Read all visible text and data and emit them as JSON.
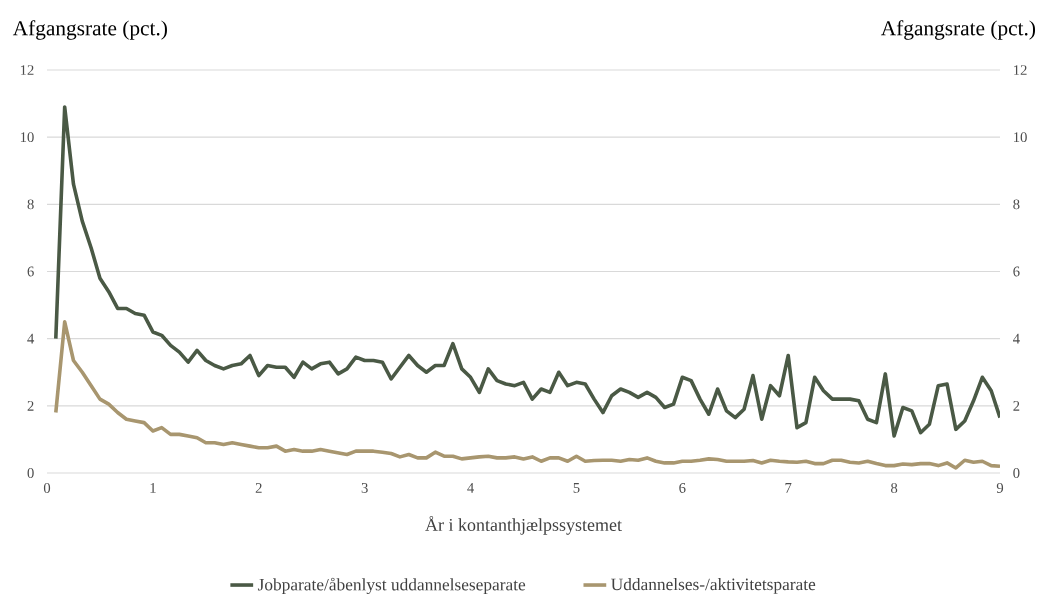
{
  "chart_data": {
    "type": "line",
    "ylabel": "Afgangsrate (pct.)",
    "y2label": "Afgangsrate (pct.)",
    "xlabel": "År i kontanthjælpssystemet",
    "x": [
      0.083,
      0.167,
      0.25,
      0.333,
      0.417,
      0.5,
      0.583,
      0.667,
      0.75,
      0.833,
      0.917,
      1.0,
      1.083,
      1.167,
      1.25,
      1.333,
      1.417,
      1.5,
      1.583,
      1.667,
      1.75,
      1.833,
      1.917,
      2.0,
      2.083,
      2.167,
      2.25,
      2.333,
      2.417,
      2.5,
      2.583,
      2.667,
      2.75,
      2.833,
      2.917,
      3.0,
      3.083,
      3.167,
      3.25,
      3.333,
      3.417,
      3.5,
      3.583,
      3.667,
      3.75,
      3.833,
      3.917,
      4.0,
      4.083,
      4.167,
      4.25,
      4.333,
      4.417,
      4.5,
      4.583,
      4.667,
      4.75,
      4.833,
      4.917,
      5.0,
      5.083,
      5.167,
      5.25,
      5.333,
      5.417,
      5.5,
      5.583,
      5.667,
      5.75,
      5.833,
      5.917,
      6.0,
      6.083,
      6.167,
      6.25,
      6.333,
      6.417,
      6.5,
      6.583,
      6.667,
      6.75,
      6.833,
      6.917,
      7.0,
      7.083,
      7.167,
      7.25,
      7.333,
      7.417,
      7.5,
      7.583,
      7.667,
      7.75,
      7.833,
      7.917,
      8.0,
      8.083,
      8.167,
      8.25,
      8.333,
      8.417,
      8.5,
      8.583,
      8.667,
      8.75,
      8.833,
      8.917,
      9.0
    ],
    "series": [
      {
        "name": "Jobparate/åbenlyst uddannelseseparate",
        "color": "#4a5945",
        "values": [
          4.0,
          10.9,
          8.6,
          7.5,
          6.7,
          5.8,
          5.4,
          4.9,
          4.9,
          4.75,
          4.7,
          4.2,
          4.1,
          3.8,
          3.6,
          3.3,
          3.65,
          3.35,
          3.2,
          3.1,
          3.2,
          3.25,
          3.5,
          2.9,
          3.2,
          3.15,
          3.15,
          2.85,
          3.3,
          3.1,
          3.25,
          3.3,
          2.95,
          3.1,
          3.45,
          3.35,
          3.35,
          3.3,
          2.8,
          3.15,
          3.5,
          3.2,
          3.0,
          3.2,
          3.2,
          3.85,
          3.1,
          2.85,
          2.4,
          3.1,
          2.75,
          2.65,
          2.6,
          2.7,
          2.2,
          2.5,
          2.4,
          3.0,
          2.6,
          2.7,
          2.65,
          2.2,
          1.8,
          2.3,
          2.5,
          2.4,
          2.25,
          2.4,
          2.25,
          1.95,
          2.05,
          2.85,
          2.75,
          2.2,
          1.75,
          2.5,
          1.85,
          1.65,
          1.9,
          2.9,
          1.6,
          2.6,
          2.3,
          3.5,
          1.35,
          1.5,
          2.85,
          2.45,
          2.2,
          2.2,
          2.2,
          2.15,
          1.6,
          1.5,
          2.95,
          1.1,
          1.95,
          1.85,
          1.2,
          1.45,
          2.6,
          2.65,
          1.3,
          1.55,
          2.15,
          2.85,
          2.45,
          1.65
        ]
      },
      {
        "name": "Uddannelses-/aktivitetsparate",
        "color": "#a8966f",
        "values": [
          1.8,
          4.5,
          3.35,
          3.0,
          2.6,
          2.2,
          2.05,
          1.8,
          1.6,
          1.55,
          1.5,
          1.25,
          1.35,
          1.15,
          1.15,
          1.1,
          1.05,
          0.9,
          0.9,
          0.85,
          0.9,
          0.85,
          0.8,
          0.75,
          0.75,
          0.8,
          0.65,
          0.7,
          0.65,
          0.65,
          0.7,
          0.65,
          0.6,
          0.55,
          0.65,
          0.65,
          0.65,
          0.62,
          0.58,
          0.48,
          0.55,
          0.45,
          0.45,
          0.62,
          0.5,
          0.5,
          0.42,
          0.45,
          0.48,
          0.5,
          0.45,
          0.45,
          0.48,
          0.42,
          0.48,
          0.35,
          0.45,
          0.45,
          0.35,
          0.5,
          0.35,
          0.37,
          0.38,
          0.38,
          0.35,
          0.4,
          0.38,
          0.45,
          0.35,
          0.3,
          0.3,
          0.35,
          0.35,
          0.38,
          0.42,
          0.4,
          0.35,
          0.35,
          0.35,
          0.37,
          0.3,
          0.38,
          0.35,
          0.33,
          0.32,
          0.35,
          0.28,
          0.28,
          0.38,
          0.38,
          0.32,
          0.3,
          0.35,
          0.28,
          0.22,
          0.22,
          0.27,
          0.25,
          0.28,
          0.28,
          0.22,
          0.3,
          0.15,
          0.38,
          0.32,
          0.35,
          0.22,
          0.2
        ]
      }
    ],
    "xlim": [
      0,
      9
    ],
    "xticks": [
      0,
      1,
      2,
      3,
      4,
      5,
      6,
      7,
      8,
      9
    ],
    "ylim": [
      0,
      12
    ],
    "yticks": [
      0,
      2,
      4,
      6,
      8,
      10,
      12
    ],
    "y2lim": [
      0,
      12
    ],
    "y2ticks": [
      0,
      2,
      4,
      6,
      8,
      10,
      12
    ],
    "grid": "y",
    "legend": "bottom",
    "marker": "none",
    "line_style": "solid"
  }
}
